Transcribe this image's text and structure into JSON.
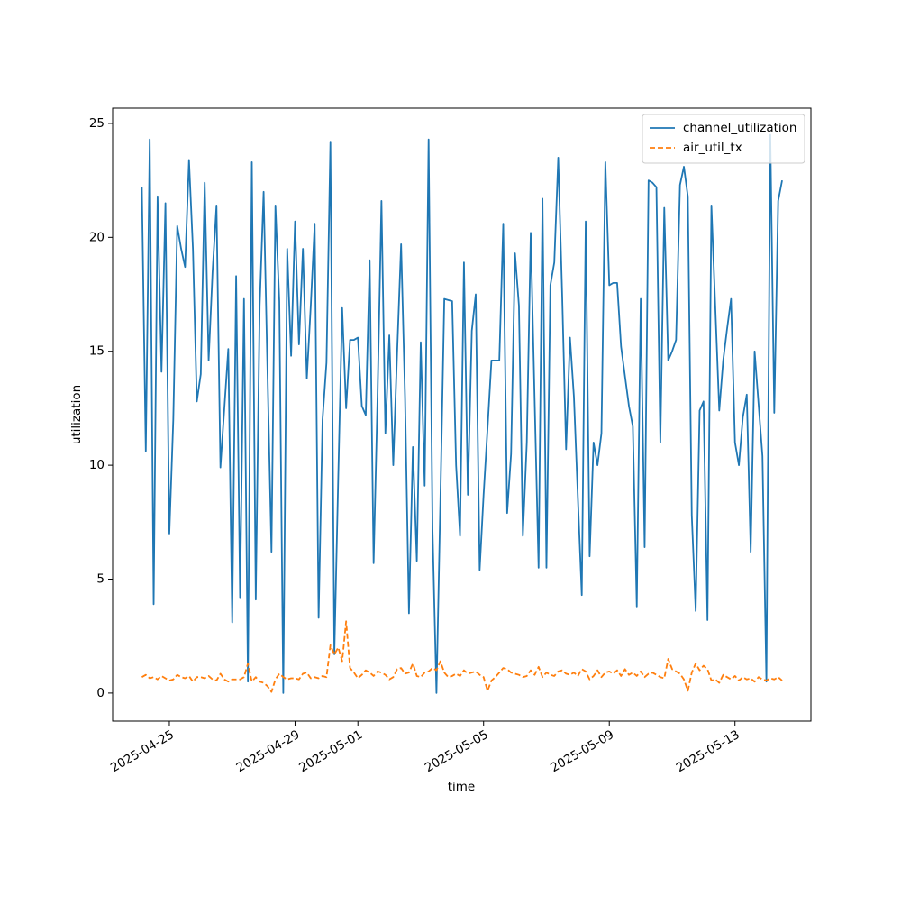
{
  "chart_data": {
    "type": "line",
    "xlabel": "time",
    "ylabel": "utilization",
    "x": [
      "2025-04-24T03:00",
      "2025-04-24T06:00",
      "2025-04-24T09:00",
      "2025-04-24T12:00",
      "2025-04-24T15:00",
      "2025-04-24T18:00",
      "2025-04-24T21:00",
      "2025-04-25T00:00",
      "2025-04-25T03:00",
      "2025-04-25T06:00",
      "2025-04-25T09:00",
      "2025-04-25T12:00",
      "2025-04-25T15:00",
      "2025-04-25T18:00",
      "2025-04-25T21:00",
      "2025-04-26T00:00",
      "2025-04-26T03:00",
      "2025-04-26T06:00",
      "2025-04-26T09:00",
      "2025-04-26T12:00",
      "2025-04-26T15:00",
      "2025-04-26T18:00",
      "2025-04-26T21:00",
      "2025-04-27T00:00",
      "2025-04-27T03:00",
      "2025-04-27T06:00",
      "2025-04-27T09:00",
      "2025-04-27T12:00",
      "2025-04-27T15:00",
      "2025-04-27T18:00",
      "2025-04-27T21:00",
      "2025-04-28T00:00",
      "2025-04-28T03:00",
      "2025-04-28T06:00",
      "2025-04-28T09:00",
      "2025-04-28T12:00",
      "2025-04-28T15:00",
      "2025-04-28T18:00",
      "2025-04-28T21:00",
      "2025-04-29T00:00",
      "2025-04-29T03:00",
      "2025-04-29T06:00",
      "2025-04-29T09:00",
      "2025-04-29T12:00",
      "2025-04-29T15:00",
      "2025-04-29T18:00",
      "2025-04-29T21:00",
      "2025-04-30T00:00",
      "2025-04-30T03:00",
      "2025-04-30T06:00",
      "2025-04-30T09:00",
      "2025-04-30T12:00",
      "2025-04-30T15:00",
      "2025-04-30T18:00",
      "2025-04-30T21:00",
      "2025-05-01T00:00",
      "2025-05-01T03:00",
      "2025-05-01T06:00",
      "2025-05-01T09:00",
      "2025-05-01T12:00",
      "2025-05-01T15:00",
      "2025-05-01T18:00",
      "2025-05-01T21:00",
      "2025-05-02T00:00",
      "2025-05-02T03:00",
      "2025-05-02T06:00",
      "2025-05-02T09:00",
      "2025-05-02T12:00",
      "2025-05-02T15:00",
      "2025-05-02T18:00",
      "2025-05-02T21:00",
      "2025-05-03T00:00",
      "2025-05-03T03:00",
      "2025-05-03T06:00",
      "2025-05-03T09:00",
      "2025-05-03T12:00",
      "2025-05-03T15:00",
      "2025-05-03T18:00",
      "2025-05-03T21:00",
      "2025-05-04T00:00",
      "2025-05-04T03:00",
      "2025-05-04T06:00",
      "2025-05-04T09:00",
      "2025-05-04T12:00",
      "2025-05-04T15:00",
      "2025-05-04T18:00",
      "2025-05-04T21:00",
      "2025-05-05T00:00",
      "2025-05-05T03:00",
      "2025-05-05T06:00",
      "2025-05-05T09:00",
      "2025-05-05T12:00",
      "2025-05-05T15:00",
      "2025-05-05T18:00",
      "2025-05-05T21:00",
      "2025-05-06T00:00",
      "2025-05-06T03:00",
      "2025-05-06T06:00",
      "2025-05-06T09:00",
      "2025-05-06T12:00",
      "2025-05-06T15:00",
      "2025-05-06T18:00",
      "2025-05-06T21:00",
      "2025-05-07T00:00",
      "2025-05-07T03:00",
      "2025-05-07T06:00",
      "2025-05-07T09:00",
      "2025-05-07T12:00",
      "2025-05-07T15:00",
      "2025-05-07T18:00",
      "2025-05-07T21:00",
      "2025-05-08T00:00",
      "2025-05-08T03:00",
      "2025-05-08T06:00",
      "2025-05-08T09:00",
      "2025-05-08T12:00",
      "2025-05-08T15:00",
      "2025-05-08T18:00",
      "2025-05-08T21:00",
      "2025-05-09T00:00",
      "2025-05-09T03:00",
      "2025-05-09T06:00",
      "2025-05-09T09:00",
      "2025-05-09T12:00",
      "2025-05-09T15:00",
      "2025-05-09T18:00",
      "2025-05-09T21:00",
      "2025-05-10T00:00",
      "2025-05-10T03:00",
      "2025-05-10T06:00",
      "2025-05-10T09:00",
      "2025-05-10T12:00",
      "2025-05-10T15:00",
      "2025-05-10T18:00",
      "2025-05-10T21:00",
      "2025-05-11T00:00",
      "2025-05-11T03:00",
      "2025-05-11T06:00",
      "2025-05-11T09:00",
      "2025-05-11T12:00",
      "2025-05-11T15:00",
      "2025-05-11T18:00",
      "2025-05-11T21:00",
      "2025-05-12T00:00",
      "2025-05-12T03:00",
      "2025-05-12T06:00",
      "2025-05-12T09:00",
      "2025-05-12T12:00",
      "2025-05-12T15:00",
      "2025-05-12T18:00",
      "2025-05-12T21:00",
      "2025-05-13T00:00",
      "2025-05-13T03:00",
      "2025-05-13T06:00",
      "2025-05-13T09:00",
      "2025-05-13T12:00",
      "2025-05-13T15:00",
      "2025-05-13T18:00",
      "2025-05-13T21:00",
      "2025-05-14T00:00",
      "2025-05-14T03:00",
      "2025-05-14T06:00",
      "2025-05-14T09:00",
      "2025-05-14T12:00"
    ],
    "series": [
      {
        "name": "channel_utilization",
        "color": "#1f77b4",
        "dash": "solid",
        "values": [
          22.2,
          10.6,
          24.3,
          3.9,
          21.8,
          14.1,
          21.5,
          7.0,
          12,
          20.5,
          19.5,
          18.7,
          23.4,
          19.5,
          12.8,
          14,
          22.4,
          14.6,
          18.5,
          21.4,
          9.9,
          12.5,
          15.1,
          3.1,
          18.3,
          4.2,
          17.3,
          0.5,
          23.3,
          4.1,
          17.0,
          22.0,
          14,
          6.2,
          21.4,
          17.2,
          0.0,
          19.5,
          14.8,
          20.7,
          15.3,
          19.5,
          13.8,
          17,
          20.6,
          3.3,
          12,
          14.5,
          24.2,
          1.7,
          9.5,
          16.9,
          12.5,
          15.5,
          15.5,
          15.6,
          12.6,
          12.2,
          19,
          5.7,
          13,
          21.6,
          11.4,
          15.7,
          10.0,
          15,
          19.7,
          13,
          3.5,
          10.8,
          5.8,
          15.4,
          9.1,
          24.3,
          7.2,
          0.0,
          8.5,
          17.3,
          17.25,
          17.2,
          10,
          6.9,
          18.9,
          8.7,
          15.9,
          17.5,
          5.4,
          8.7,
          11.6,
          14.6,
          14.6,
          14.6,
          20.6,
          7.9,
          10.5,
          19.3,
          17,
          6.9,
          11,
          20.2,
          12.8,
          5.5,
          21.7,
          5.5,
          17.9,
          18.9,
          23.5,
          17.5,
          10.7,
          15.6,
          13,
          8.6,
          4.3,
          20.7,
          6,
          11,
          10,
          11.4,
          23.3,
          17.9,
          18,
          18,
          15.2,
          13.9,
          12.6,
          11.7,
          3.8,
          17.3,
          6.4,
          22.5,
          22.4,
          22.2,
          11,
          21.3,
          14.6,
          15.0,
          15.5,
          22.3,
          23.1,
          21.8,
          7.8,
          3.6,
          12.4,
          12.8,
          3.2,
          21.4,
          16.9,
          12.4,
          14.6,
          16,
          17.3,
          11,
          10,
          12.1,
          13.1,
          6.2,
          15,
          12.7,
          10.4,
          0.5,
          24.5,
          12.3,
          21.6,
          22.5
        ]
      },
      {
        "name": "air_util_tx",
        "color": "#ff7f0e",
        "dash": "dashed",
        "values": [
          0.7,
          0.8,
          0.65,
          0.7,
          0.6,
          0.75,
          0.65,
          0.55,
          0.6,
          0.8,
          0.7,
          0.65,
          0.75,
          0.5,
          0.7,
          0.7,
          0.65,
          0.75,
          0.6,
          0.55,
          0.85,
          0.6,
          0.5,
          0.6,
          0.6,
          0.6,
          0.7,
          1.3,
          0.5,
          0.7,
          0.5,
          0.45,
          0.3,
          0.05,
          0.6,
          0.85,
          0.7,
          0.6,
          0.65,
          0.65,
          0.6,
          0.85,
          0.9,
          0.65,
          0.7,
          0.65,
          0.75,
          0.7,
          2.1,
          1.7,
          2.0,
          1.4,
          3.15,
          1.1,
          0.9,
          0.65,
          0.8,
          1.0,
          0.9,
          0.75,
          0.95,
          0.9,
          0.8,
          0.6,
          0.7,
          1.05,
          1.1,
          0.85,
          0.9,
          1.3,
          0.75,
          0.7,
          0.9,
          0.95,
          1.1,
          1.0,
          1.4,
          0.9,
          0.7,
          0.75,
          0.85,
          0.75,
          1.0,
          0.85,
          0.9,
          0.95,
          0.8,
          0.7,
          0.1,
          0.55,
          0.7,
          0.9,
          1.1,
          1.05,
          0.9,
          0.85,
          0.8,
          0.7,
          0.75,
          1.0,
          0.8,
          1.15,
          0.7,
          0.9,
          0.8,
          0.75,
          0.95,
          1.0,
          0.85,
          0.8,
          0.9,
          0.75,
          1.05,
          0.95,
          0.6,
          0.75,
          1.0,
          0.7,
          0.9,
          0.95,
          0.85,
          1.0,
          0.75,
          1.05,
          0.8,
          0.9,
          0.75,
          0.95,
          0.7,
          0.85,
          0.9,
          0.8,
          0.7,
          0.65,
          1.5,
          1.05,
          0.95,
          0.85,
          0.6,
          0.1,
          0.9,
          1.3,
          1.0,
          1.2,
          1.05,
          0.55,
          0.6,
          0.45,
          0.8,
          0.7,
          0.6,
          0.75,
          0.55,
          0.7,
          0.6,
          0.65,
          0.5,
          0.7,
          0.6,
          0.55,
          0.65,
          0.6,
          0.7,
          0.55
        ]
      }
    ],
    "xlim": [
      "2025-04-23T04:40",
      "2025-05-15T10:00"
    ],
    "xticks": [
      "2025-04-25",
      "2025-04-29",
      "2025-05-01",
      "2025-05-05",
      "2025-05-09",
      "2025-05-13"
    ],
    "ylim": [
      -1.23,
      25.67
    ],
    "yticks": [
      0,
      5,
      10,
      15,
      20,
      25
    ],
    "grid": false,
    "legend": "upper right"
  }
}
